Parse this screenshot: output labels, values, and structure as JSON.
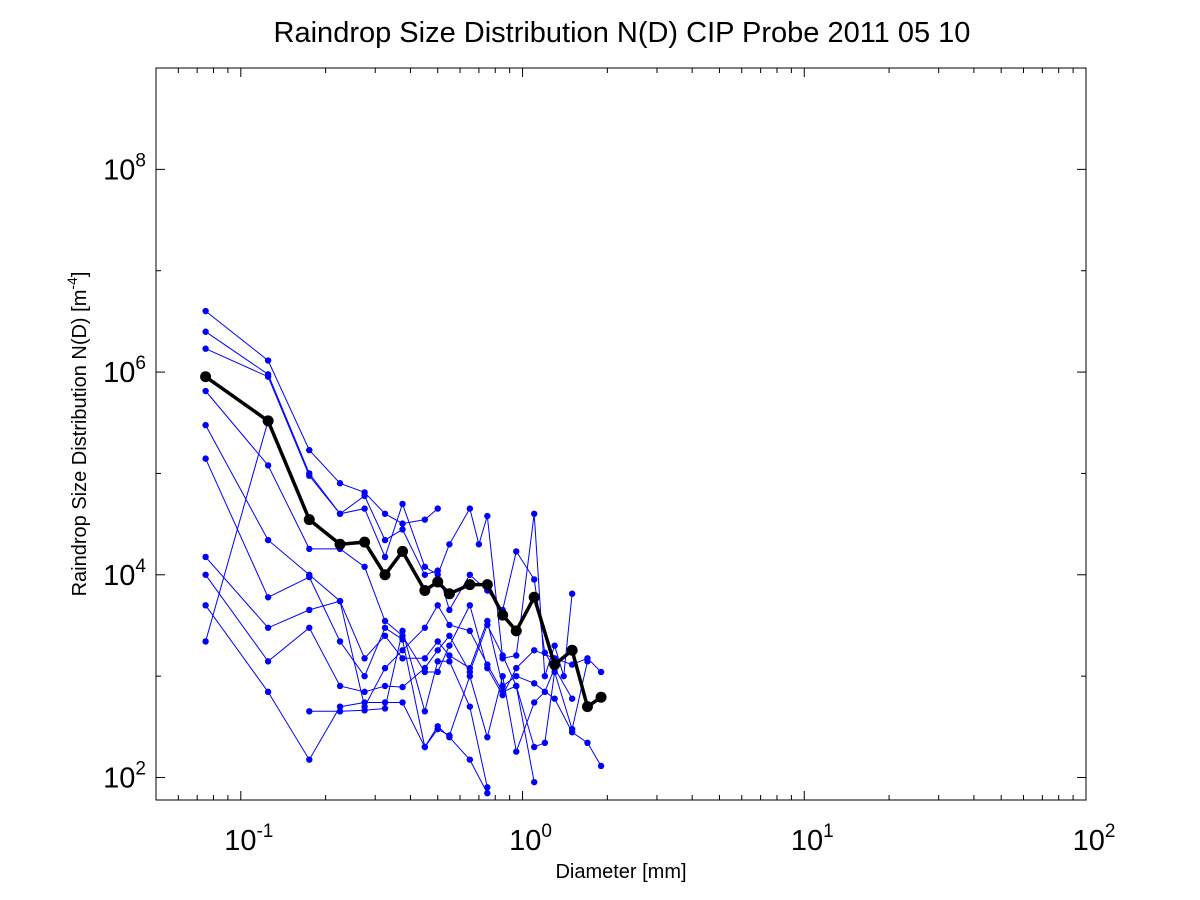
{
  "chart_data": {
    "type": "line",
    "title": "Raindrop Size Distribution N(D) CIP Probe 2011 05 10",
    "xlabel": "Diameter [mm]",
    "ylabel_main": "Raindrop Size Distribution N(D) [m",
    "ylabel_sup": "-4",
    "ylabel_end": "]",
    "xscale": "log",
    "yscale": "log",
    "xlim": [
      0.05,
      100
    ],
    "ylim": [
      60,
      1000000000
    ],
    "grid": false,
    "x_ticks": [
      {
        "base": "10",
        "exp": "-1",
        "value": 0.1
      },
      {
        "base": "10",
        "exp": "0",
        "value": 1
      },
      {
        "base": "10",
        "exp": "1",
        "value": 10
      },
      {
        "base": "10",
        "exp": "2",
        "value": 100
      }
    ],
    "y_ticks": [
      {
        "base": "10",
        "exp": "2",
        "value": 100
      },
      {
        "base": "10",
        "exp": "4",
        "value": 10000
      },
      {
        "base": "10",
        "exp": "6",
        "value": 1000000
      },
      {
        "base": "10",
        "exp": "8",
        "value": 100000000
      }
    ],
    "colors": {
      "series": "#0000ff",
      "mean": "#000000"
    },
    "series": [
      {
        "x": [
          0.075,
          0.125,
          0.175,
          0.225,
          0.275,
          0.325,
          0.375,
          0.45,
          0.5
        ],
        "y": [
          4000000,
          1300000,
          170000,
          80000,
          65000,
          40000,
          32000,
          35000,
          45000
        ]
      },
      {
        "x": [
          0.075,
          0.125,
          0.175,
          0.225,
          0.275,
          0.325,
          0.375,
          0.45,
          0.5,
          0.55,
          0.65,
          0.7,
          0.75,
          0.85,
          0.95,
          1.1,
          1.2,
          1.3,
          1.4,
          1.5
        ],
        "y": [
          2500000,
          950000,
          100000,
          40000,
          45000,
          15000,
          50000,
          12000,
          10000,
          20000,
          45000,
          20000,
          38000,
          1500,
          1600,
          40000,
          1000,
          2000,
          1000,
          6500
        ]
      },
      {
        "x": [
          0.075,
          0.125,
          0.175,
          0.225,
          0.275,
          0.325,
          0.375,
          0.45,
          0.5,
          0.55,
          0.65,
          0.75,
          0.85,
          0.95,
          1.1,
          1.2,
          1.3,
          1.5
        ],
        "y": [
          1700000,
          900000,
          95000,
          40000,
          60000,
          22000,
          28000,
          10000,
          11000,
          4500,
          10000,
          7000,
          4500,
          17000,
          9000,
          1700,
          1200,
          600
        ]
      },
      {
        "x": [
          0.075,
          0.125,
          0.175,
          0.225,
          0.275,
          0.325,
          0.375,
          0.45,
          0.5,
          0.55,
          0.65,
          0.75,
          0.85,
          0.95,
          1.1,
          1.3,
          1.5,
          1.7,
          1.9
        ],
        "y": [
          650000,
          120000,
          18000,
          18000,
          12000,
          3500,
          2500,
          1100,
          1100,
          2000,
          5000,
          1200,
          650,
          1200,
          1800,
          1500,
          1300,
          1500,
          1100
        ]
      },
      {
        "x": [
          0.075,
          0.125,
          0.175,
          0.225,
          0.275,
          0.325,
          0.375,
          0.45,
          0.5,
          0.55,
          0.65,
          0.75,
          0.85,
          0.95,
          1.1,
          1.3,
          1.5,
          1.7,
          1.9
        ],
        "y": [
          300000,
          22000,
          10000,
          5500,
          1500,
          2500,
          1500,
          1500,
          2200,
          1600,
          1200,
          3500,
          800,
          1000,
          850,
          600,
          280,
          220,
          130
        ]
      },
      {
        "x": [
          0.075,
          0.125,
          0.175,
          0.225,
          0.275,
          0.325,
          0.375,
          0.45,
          0.5,
          0.55,
          0.65,
          0.75
        ],
        "y": [
          140000,
          6000,
          9500,
          2200,
          1000,
          3000,
          2300,
          200,
          320,
          250,
          150,
          70
        ]
      },
      {
        "x": [
          0.075,
          0.125,
          0.175,
          0.225,
          0.275,
          0.325,
          0.375,
          0.45,
          0.5,
          0.55,
          0.65,
          0.75,
          0.85,
          0.95,
          1.1
        ],
        "y": [
          15000,
          3000,
          4500,
          5500,
          500,
          1200,
          1800,
          3000,
          5000,
          3200,
          2800,
          1300,
          700,
          800,
          90
        ]
      },
      {
        "x": [
          0.075,
          0.125,
          0.175,
          0.225,
          0.275,
          0.325,
          0.375,
          0.45,
          0.5,
          0.55,
          0.65,
          0.75,
          0.85,
          0.95,
          1.1,
          1.2,
          1.3,
          1.5,
          1.7
        ],
        "y": [
          10000,
          1400,
          3000,
          800,
          700,
          800,
          780,
          1200,
          1800,
          2500,
          1100,
          3200,
          1600,
          800,
          200,
          220,
          1100,
          300,
          1400
        ]
      },
      {
        "x": [
          0.075,
          0.125,
          0.175,
          0.225,
          0.275,
          0.325,
          0.375,
          0.45,
          0.5,
          0.55,
          0.65,
          0.75,
          0.85,
          0.95,
          1.1,
          1.2,
          1.3
        ],
        "y": [
          5000,
          700,
          150,
          500,
          550,
          550,
          550,
          200,
          300,
          260,
          1000,
          250,
          1000,
          180,
          550,
          700,
          1200
        ]
      },
      {
        "x": [
          0.075,
          0.125
        ],
        "y": [
          2200,
          330000
        ]
      },
      {
        "x": [
          0.175,
          0.225,
          0.275,
          0.325,
          0.375,
          0.45,
          0.5,
          0.55,
          0.65,
          0.75
        ],
        "y": [
          450,
          450,
          460,
          480,
          2800,
          450,
          1400,
          1400,
          500,
          80
        ]
      }
    ],
    "mean": {
      "x": [
        0.075,
        0.125,
        0.175,
        0.225,
        0.275,
        0.325,
        0.375,
        0.45,
        0.5,
        0.55,
        0.65,
        0.75,
        0.85,
        0.95,
        1.1,
        1.3,
        1.5,
        1.7,
        1.9
      ],
      "y": [
        900000,
        330000,
        35000,
        20000,
        21000,
        10000,
        17000,
        7000,
        8500,
        6500,
        8000,
        8000,
        4000,
        2800,
        6000,
        1300,
        1800,
        500,
        620
      ]
    }
  }
}
